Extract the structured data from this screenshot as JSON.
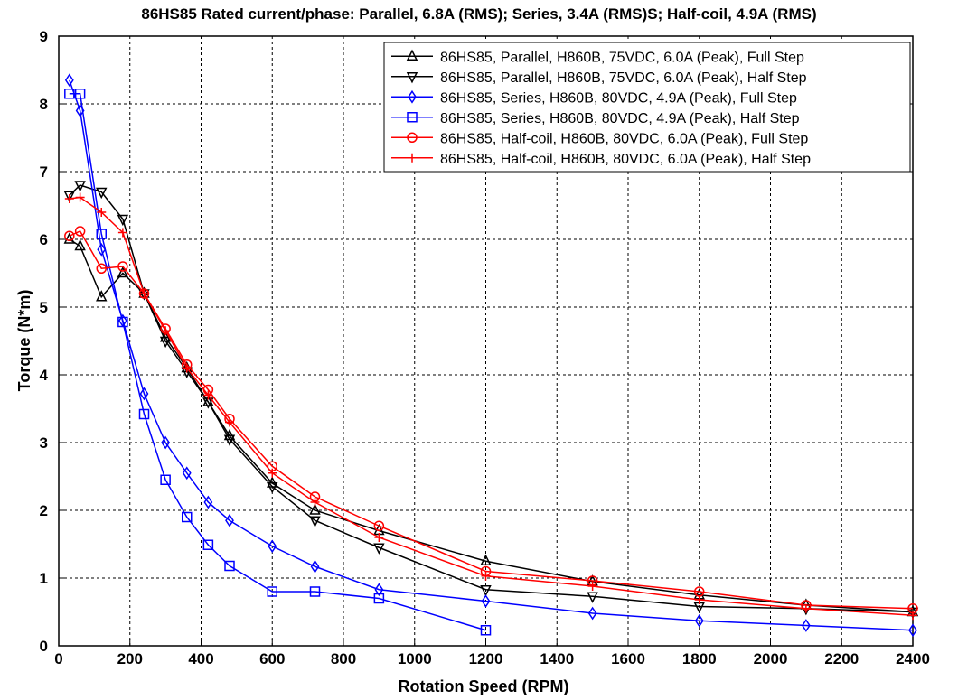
{
  "chart_data": {
    "type": "line",
    "title": "86HS85 Rated current/phase: Parallel, 6.8A (RMS); Series, 3.4A (RMS)S; Half-coil, 4.9A (RMS)",
    "xlabel": "Rotation Speed (RPM)",
    "ylabel": "Torque (N*m)",
    "xlim": [
      0,
      2400
    ],
    "ylim": [
      0,
      9
    ],
    "xticks": [
      0,
      200,
      400,
      600,
      800,
      1000,
      1200,
      1400,
      1600,
      1800,
      2000,
      2200,
      2400
    ],
    "yticks": [
      0,
      1,
      2,
      3,
      4,
      5,
      6,
      7,
      8,
      9
    ],
    "grid": true,
    "legend_position": "top-right",
    "series": [
      {
        "name": "86HS85, Parallel, H860B, 75VDC, 6.0A (Peak), Full Step",
        "color": "#000000",
        "marker": "triangle-up",
        "x": [
          30,
          60,
          120,
          180,
          240,
          300,
          360,
          420,
          480,
          600,
          720,
          900,
          1200,
          1500,
          1800,
          2100,
          2400
        ],
        "y": [
          6.0,
          5.9,
          5.15,
          5.5,
          5.2,
          4.55,
          4.1,
          3.6,
          3.1,
          2.4,
          2.0,
          1.7,
          1.25,
          0.95,
          0.75,
          0.6,
          0.5
        ]
      },
      {
        "name": "86HS85, Parallel, H860B, 75VDC, 6.0A (Peak), Half Step",
        "color": "#000000",
        "marker": "triangle-down",
        "x": [
          30,
          60,
          120,
          180,
          240,
          300,
          360,
          420,
          480,
          600,
          720,
          900,
          1200,
          1500,
          1800,
          2100,
          2400
        ],
        "y": [
          6.65,
          6.8,
          6.7,
          6.3,
          5.2,
          4.5,
          4.05,
          3.6,
          3.05,
          2.35,
          1.85,
          1.45,
          0.83,
          0.73,
          0.58,
          0.55,
          0.5
        ]
      },
      {
        "name": "86HS85, Series, H860B, 80VDC, 4.9A (Peak), Full Step",
        "color": "#0000ff",
        "marker": "diamond",
        "x": [
          30,
          60,
          120,
          180,
          240,
          300,
          360,
          420,
          480,
          600,
          720,
          900,
          1200,
          1500,
          1800,
          2100,
          2400
        ],
        "y": [
          8.35,
          7.9,
          5.85,
          4.8,
          3.72,
          3.0,
          2.55,
          2.12,
          1.85,
          1.47,
          1.17,
          0.83,
          0.66,
          0.48,
          0.37,
          0.3,
          0.23
        ]
      },
      {
        "name": "86HS85, Series, H860B, 80VDC, 4.9A (Peak), Half Step",
        "color": "#0000ff",
        "marker": "square",
        "x": [
          30,
          60,
          120,
          180,
          240,
          300,
          360,
          420,
          480,
          600,
          720,
          900,
          1200
        ],
        "y": [
          8.15,
          8.15,
          6.08,
          4.78,
          3.42,
          2.45,
          1.9,
          1.49,
          1.18,
          0.8,
          0.8,
          0.7,
          0.23
        ]
      },
      {
        "name": "86HS85, Half-coil, H860B, 80VDC, 6.0A (Peak), Full Step",
        "color": "#ff0000",
        "marker": "circle",
        "x": [
          30,
          60,
          120,
          180,
          240,
          300,
          360,
          420,
          480,
          600,
          720,
          900,
          1200,
          1500,
          1800,
          2100,
          2400
        ],
        "y": [
          6.05,
          6.12,
          5.57,
          5.6,
          5.2,
          4.68,
          4.15,
          3.78,
          3.35,
          2.65,
          2.2,
          1.77,
          1.1,
          0.96,
          0.8,
          0.6,
          0.55
        ]
      },
      {
        "name": "86HS85, Half-coil, H860B, 80VDC, 6.0A (Peak), Half Step",
        "color": "#ff0000",
        "marker": "plus",
        "x": [
          30,
          60,
          120,
          180,
          240,
          300,
          360,
          420,
          480,
          600,
          720,
          900,
          1200,
          1500,
          1800,
          2100,
          2400
        ],
        "y": [
          6.6,
          6.62,
          6.4,
          6.1,
          5.2,
          4.65,
          4.1,
          3.7,
          3.3,
          2.55,
          2.12,
          1.6,
          1.03,
          0.88,
          0.68,
          0.55,
          0.45
        ]
      }
    ]
  }
}
